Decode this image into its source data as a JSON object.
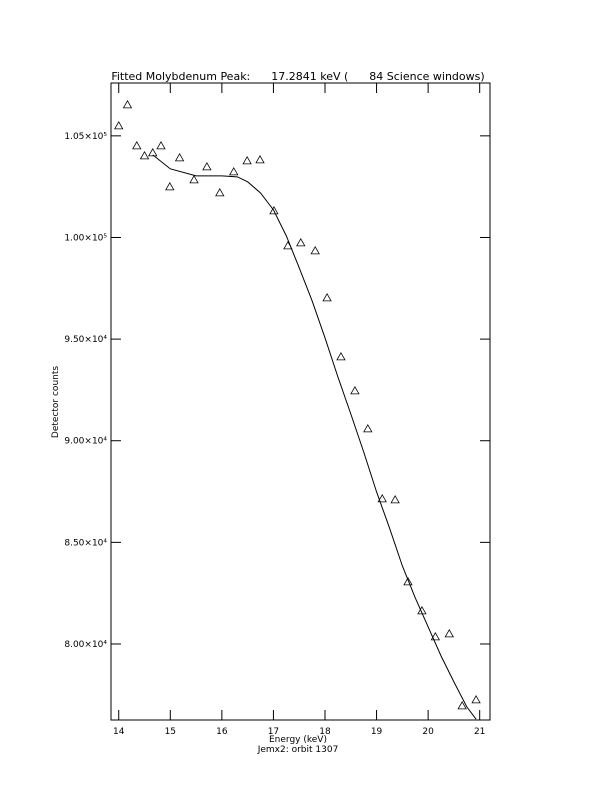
{
  "chart_data": {
    "type": "scatter",
    "title": "Fitted Molybdenum Peak:      17.2841 keV (      84 Science windows)",
    "x_label": "Energy (keV)",
    "y_label": "Detector counts",
    "subtitle": "Jemx2: orbit 1307",
    "color": "#000000",
    "marker": "triangle",
    "xlim": [
      13.85,
      21.2
    ],
    "ylim": [
      76260,
      107600
    ],
    "xticks": [
      14,
      15,
      16,
      17,
      18,
      19,
      20,
      21
    ],
    "yticks": [
      {
        "value": 80000,
        "label": "8.00×10⁴"
      },
      {
        "value": 85000,
        "label": "8.50×10⁴"
      },
      {
        "value": 90000,
        "label": "9.00×10⁴"
      },
      {
        "value": 95000,
        "label": "9.50×10⁴"
      },
      {
        "value": 100000,
        "label": "1.00×10⁵"
      },
      {
        "value": 105000,
        "label": "1.05×10⁵"
      }
    ],
    "points": {
      "x": [
        14.0,
        14.17,
        14.35,
        14.5,
        14.66,
        14.82,
        14.99,
        15.18,
        15.46,
        15.71,
        15.96,
        16.23,
        16.49,
        16.74,
        17.01,
        17.28,
        17.53,
        17.81,
        18.04,
        18.31,
        18.58,
        18.83,
        19.11,
        19.36,
        19.61,
        19.88,
        20.14,
        20.41,
        20.66,
        20.93
      ],
      "y": [
        105492,
        106525,
        104508,
        104016,
        104164,
        104508,
        102491,
        103918,
        102835,
        103475,
        102196,
        103229,
        103770,
        103819,
        101310,
        99588,
        99736,
        99342,
        97030,
        94127,
        92454,
        90584,
        87140,
        87091,
        83057,
        81630,
        80351,
        80498,
        76956,
        77251
      ]
    },
    "fit": {
      "x": [
        14.66,
        15.0,
        15.5,
        16.0,
        16.3,
        16.5,
        16.75,
        17.0,
        17.25,
        17.5,
        17.75,
        18.0,
        18.25,
        18.5,
        18.75,
        19.0,
        19.25,
        19.5,
        19.75,
        20.0,
        20.25,
        20.5,
        20.75,
        20.93
      ],
      "y": [
        104065,
        103376,
        103032,
        103032,
        102983,
        102737,
        102190,
        101359,
        100080,
        98506,
        96882,
        95062,
        93143,
        91322,
        89453,
        87485,
        85714,
        83844,
        82270,
        80843,
        79416,
        78137,
        76906,
        76300
      ]
    }
  }
}
